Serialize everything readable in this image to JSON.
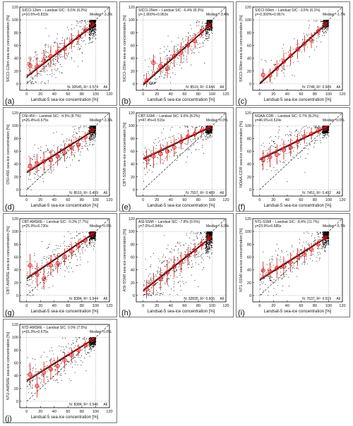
{
  "axis": {
    "xlabel": "Landsat-5 sea-ice concentration [%]",
    "x_ticks": [
      0,
      20,
      40,
      60,
      80,
      100,
      120
    ],
    "y_ticks": [
      0,
      20,
      40,
      60,
      80,
      100,
      120
    ],
    "xlim": [
      -10,
      120
    ],
    "ylim": [
      -10,
      120
    ]
  },
  "colors": {
    "points": "#000000",
    "fit": "#e01010",
    "bins": "#e01010",
    "identity": "#000000"
  },
  "chart_data": [
    {
      "panel": "(a)",
      "type": "scatter",
      "title": "SICCI-12km − Landsat SIC: -5.5% (6.2%)",
      "equation": "y=10.6%+0.833x",
      "median": "Median: -3.2%",
      "ylabel": "SICCI-12km sea-ice concentration [%]",
      "stats": "N: 30545, R²: 0.574",
      "flag": "All",
      "intercept": 10.6,
      "slope": 0.833,
      "cloud_spread": 18,
      "n_points": 600,
      "bins": {
        "x": [
          5,
          15,
          25,
          35,
          45,
          55,
          65,
          75,
          85,
          95
        ],
        "y": [
          29,
          27,
          36,
          43,
          49,
          55,
          66,
          73,
          83,
          93
        ],
        "sd": [
          14,
          15,
          16,
          17,
          15,
          15,
          12,
          11,
          9,
          5
        ]
      }
    },
    {
      "panel": "(b)",
      "type": "scatter",
      "title": "SICCI-25km − Landsat SIC: -6.4% (8.3%)",
      "equation": "y=-1.900%+0.963x",
      "median": "Median: -3.4%",
      "ylabel": "SICCI-25km sea-ice concentration [%]",
      "stats": "N: 8519, R²: 0.644",
      "flag": "All",
      "intercept": -1.9,
      "slope": 0.963,
      "cloud_spread": 16,
      "n_points": 450,
      "bins": {
        "x": [
          5,
          15,
          25,
          35,
          45,
          55,
          65,
          75,
          85,
          95
        ],
        "y": [
          5,
          33,
          28,
          24,
          43,
          49,
          60,
          67,
          82,
          91
        ],
        "sd": [
          12,
          13,
          14,
          15,
          16,
          16,
          14,
          12,
          9,
          6
        ]
      }
    },
    {
      "panel": "(c)",
      "type": "scatter",
      "title": "SICCI-50km − Landsat SIC: -3.5% (6.1%)",
      "equation": "y=-0.300%+0.967x",
      "median": "Median: -1.7%",
      "ylabel": "SICCI-50km sea-ice concentration [%]",
      "stats": "N: 2748, R²: 0.589",
      "flag": "All",
      "intercept": -0.3,
      "slope": 0.967,
      "cloud_spread": 14,
      "n_points": 220,
      "bins": {
        "x": [
          5,
          15,
          25,
          35,
          45,
          55,
          65,
          75,
          85,
          95
        ],
        "y": [
          14,
          13,
          24,
          35,
          44,
          54,
          63,
          68,
          82,
          93
        ],
        "sd": [
          10,
          11,
          13,
          14,
          15,
          15,
          13,
          12,
          8,
          5
        ]
      }
    },
    {
      "panel": "(d)",
      "type": "scatter",
      "title": "OSI-450 − Landsat SIC: -4.5% (8.7%)",
      "equation": "y=26.4%+0.675x",
      "median": "Median: -3.3%",
      "ylabel": "OSI-450 sea-ice concentration [%]",
      "stats": "N: 8519, R²: 0.499",
      "flag": "All",
      "intercept": 26.4,
      "slope": 0.675,
      "cloud_spread": 17,
      "n_points": 450,
      "bins": {
        "x": [
          5,
          15,
          25,
          35,
          45,
          55,
          65,
          75,
          85,
          95
        ],
        "y": [
          37,
          41,
          44,
          46,
          52,
          58,
          66,
          70,
          82,
          93
        ],
        "sd": [
          14,
          15,
          16,
          16,
          15,
          14,
          13,
          11,
          8,
          5
        ]
      }
    },
    {
      "panel": "(e)",
      "type": "scatter",
      "title": "CBT-SSMI − Landsat SIC: 0.6% (8.2%)",
      "equation": "y=47.4%+0.515x",
      "median": "Median: 0.0%",
      "ylabel": "CBT-SSMI sea-ice concentration [%]",
      "stats": "N: 7557, R²: 0.489",
      "flag": "All",
      "intercept": 47.4,
      "slope": 0.515,
      "cloud_spread": 15,
      "n_points": 420,
      "bins": {
        "x": [
          5,
          15,
          25,
          35,
          45,
          55,
          65,
          75,
          85,
          95
        ],
        "y": [
          48,
          52,
          56,
          60,
          66,
          75,
          83,
          87,
          92,
          96
        ],
        "sd": [
          15,
          16,
          16,
          15,
          14,
          12,
          11,
          9,
          6,
          4
        ]
      }
    },
    {
      "panel": "(f)",
      "type": "scatter",
      "title": "NOAA-CDR − Landsat SIC: 0.7% (8.2%)",
      "equation": "y=46.6%+0.524x",
      "median": "Median: 0.0%",
      "ylabel": "NOAA-CDR sea-ice concentration [%]",
      "stats": "N: 7451, R²: 0.492",
      "flag": "All",
      "intercept": 46.6,
      "slope": 0.524,
      "cloud_spread": 15,
      "n_points": 420,
      "bins": {
        "x": [
          5,
          15,
          25,
          35,
          45,
          55,
          65,
          75,
          85,
          95
        ],
        "y": [
          47,
          51,
          55,
          62,
          66,
          75,
          83,
          87,
          92,
          96
        ],
        "sd": [
          15,
          16,
          16,
          15,
          14,
          12,
          11,
          9,
          6,
          4
        ]
      }
    },
    {
      "panel": "(g)",
      "type": "scatter",
      "title": "CBT-AMSRE − Landsat SIC: -0.3% (7.7%)",
      "equation": "y=25.9%+0.730x",
      "median": "Median: 0.0%",
      "ylabel": "CBT-AMSRE sea-ice concentration [%]",
      "stats": "N: 8384, R²: 0.544",
      "flag": "All",
      "intercept": 25.9,
      "slope": 0.73,
      "cloud_spread": 16,
      "n_points": 450,
      "bins": {
        "x": [
          5,
          15,
          25,
          35,
          45,
          55,
          65,
          75,
          85,
          95
        ],
        "y": [
          47,
          33,
          26,
          47,
          50,
          60,
          69,
          77,
          86,
          95
        ],
        "sd": [
          18,
          18,
          17,
          16,
          15,
          13,
          12,
          10,
          7,
          4
        ]
      }
    },
    {
      "panel": "(h)",
      "type": "scatter",
      "title": "ASI-SSMI − Landsat SIC: -7.8% (0.5%)",
      "equation": "y=7.0%+0.846x",
      "median": "Median: -6.0%",
      "ylabel": "ASI-SSMI sea-ice concentration [%]",
      "stats": "N: 32835, R²: 0.606",
      "flag": "All",
      "intercept": 7.0,
      "slope": 0.846,
      "cloud_spread": 22,
      "n_points": 650,
      "bins": {
        "x": [
          5,
          15,
          25,
          35,
          45,
          55,
          65,
          75,
          85,
          95
        ],
        "y": [
          10,
          18,
          26,
          36,
          45,
          52,
          62,
          70,
          80,
          90
        ],
        "sd": [
          15,
          17,
          18,
          18,
          17,
          16,
          14,
          12,
          9,
          6
        ]
      }
    },
    {
      "panel": "(i)",
      "type": "scatter",
      "title": "NT1-SSMI − Landsat SIC: -8.4% (11.7%)",
      "equation": "y=23.9%+0.685x",
      "median": "Median: -5.7%",
      "ylabel": "NT1-SSMI sea-ice concentration [%]",
      "stats": "N: 7637, R²: 0.519",
      "flag": "All",
      "intercept": 23.9,
      "slope": 0.685,
      "cloud_spread": 16,
      "n_points": 430,
      "bins": {
        "x": [
          5,
          15,
          25,
          35,
          45,
          55,
          65,
          75,
          85,
          95
        ],
        "y": [
          39,
          37,
          43,
          45,
          52,
          60,
          64,
          72,
          80,
          90
        ],
        "sd": [
          14,
          15,
          16,
          16,
          15,
          14,
          12,
          10,
          8,
          5
        ]
      }
    },
    {
      "panel": "(j)",
      "type": "scatter",
      "title": "NT2-AMSRE − Landsat SIC: 0.0% (7.5%)",
      "equation": "y=31.3%+0.675x",
      "median": "Median: 0.0%",
      "ylabel": "NT2-AMSRE sea-ice concentration [%]",
      "stats": "N: 8384, R²: 0.546",
      "flag": "All",
      "intercept": 31.3,
      "slope": 0.675,
      "cloud_spread": 15,
      "n_points": 430,
      "bins": {
        "x": [
          5,
          15,
          25,
          35,
          45,
          55,
          65,
          75,
          85,
          95
        ],
        "y": [
          42,
          24,
          45,
          50,
          55,
          64,
          72,
          80,
          88,
          96
        ],
        "sd": [
          18,
          18,
          17,
          16,
          15,
          13,
          11,
          9,
          7,
          4
        ]
      }
    }
  ]
}
